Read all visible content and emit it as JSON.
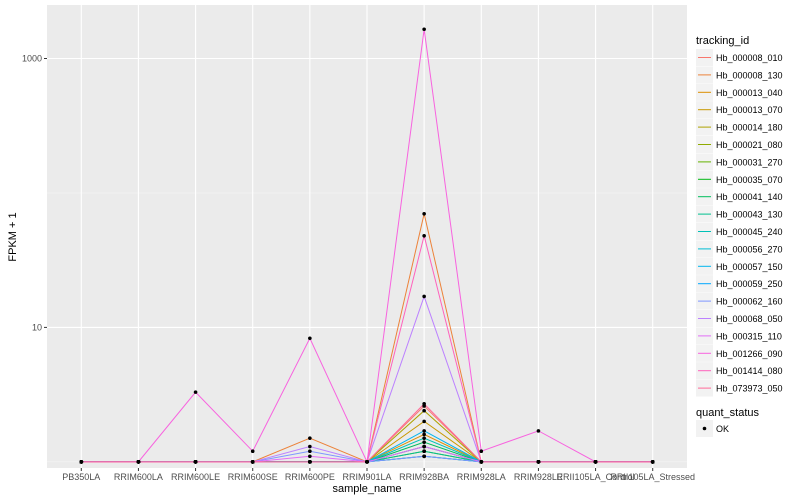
{
  "chart_data": {
    "type": "line",
    "xlabel": "sample_name",
    "ylabel": "FPKM + 1",
    "yscale": "log10",
    "ylim": [
      0.9,
      2500
    ],
    "y_ticks": [
      {
        "value": 1000,
        "label": "1000"
      },
      {
        "value": 10,
        "label": "10"
      }
    ],
    "categories": [
      "PB350LA",
      "RRIM600LA",
      "RRIM600LE",
      "RRIM600SE",
      "RRIM600PE",
      "RRIM901LA",
      "RRIM928BA",
      "RRIM928LA",
      "RRIM928LE",
      "RRII105LA_Control",
      "RRII105LA_Stressed"
    ],
    "legend": {
      "title": "tracking_id",
      "status_title": "quant_status",
      "status_label": "OK"
    },
    "series": [
      {
        "name": "Hb_000008_010",
        "color": "#F8766D",
        "values": [
          1,
          1,
          1,
          1,
          1,
          1,
          2.6,
          1,
          1,
          1,
          1
        ]
      },
      {
        "name": "Hb_000008_130",
        "color": "#EC8239",
        "values": [
          1,
          1,
          1,
          1,
          1.5,
          1,
          70,
          1,
          1,
          1,
          1
        ]
      },
      {
        "name": "Hb_000013_040",
        "color": "#DB8E00",
        "values": [
          1,
          1,
          1,
          1,
          1,
          1,
          1.6,
          1,
          1,
          1,
          1
        ]
      },
      {
        "name": "Hb_000013_070",
        "color": "#C79800",
        "values": [
          1,
          1,
          1,
          1,
          1,
          1,
          2.0,
          1,
          1,
          1,
          1
        ]
      },
      {
        "name": "Hb_000014_180",
        "color": "#AEA200",
        "values": [
          1,
          1,
          1,
          1,
          1,
          1,
          2.4,
          1,
          1,
          1,
          1
        ]
      },
      {
        "name": "Hb_000021_080",
        "color": "#8FAA00",
        "values": [
          1,
          1,
          1,
          1,
          1,
          1,
          1.3,
          1,
          1,
          1,
          1
        ]
      },
      {
        "name": "Hb_000031_270",
        "color": "#64B200",
        "values": [
          1,
          1,
          1,
          1,
          1,
          1,
          1.2,
          1,
          1,
          1,
          1
        ]
      },
      {
        "name": "Hb_000035_070",
        "color": "#00B813",
        "values": [
          1,
          1,
          1,
          1,
          1,
          1,
          1.1,
          1,
          1,
          1,
          1
        ]
      },
      {
        "name": "Hb_000041_140",
        "color": "#00BD5C",
        "values": [
          1,
          1,
          1,
          1,
          1,
          1,
          1.4,
          1,
          1,
          1,
          1
        ]
      },
      {
        "name": "Hb_000043_130",
        "color": "#00C08E",
        "values": [
          1,
          1,
          1,
          1,
          1,
          1,
          1.2,
          1,
          1,
          1,
          1
        ]
      },
      {
        "name": "Hb_000045_240",
        "color": "#00C1B7",
        "values": [
          1,
          1,
          1,
          1,
          1,
          1,
          1.5,
          1,
          1,
          1,
          1
        ]
      },
      {
        "name": "Hb_000056_270",
        "color": "#00BDD4",
        "values": [
          1,
          1,
          1,
          1,
          1,
          1,
          1.3,
          1,
          1,
          1,
          1
        ]
      },
      {
        "name": "Hb_000057_150",
        "color": "#00B5EE",
        "values": [
          1,
          1,
          1,
          1,
          1,
          1,
          1.7,
          1,
          1,
          1,
          1
        ]
      },
      {
        "name": "Hb_000059_250",
        "color": "#00A7FF",
        "values": [
          1,
          1,
          1,
          1,
          1,
          1,
          1.1,
          1,
          1,
          1,
          1
        ]
      },
      {
        "name": "Hb_000062_160",
        "color": "#7F96FF",
        "values": [
          1,
          1,
          1,
          1,
          1.2,
          1,
          1.1,
          1,
          1,
          1,
          1
        ]
      },
      {
        "name": "Hb_000068_050",
        "color": "#BC81FF",
        "values": [
          1,
          1,
          1,
          1,
          1.3,
          1,
          17,
          1,
          1,
          1,
          1
        ]
      },
      {
        "name": "Hb_000315_110",
        "color": "#E26EF7",
        "values": [
          1,
          1,
          1,
          1,
          1.1,
          1,
          1.3,
          1,
          1,
          1,
          1
        ]
      },
      {
        "name": "Hb_001266_090",
        "color": "#F863DF",
        "values": [
          1,
          1,
          3.3,
          1.2,
          8.3,
          1,
          1650,
          1.2,
          1.7,
          1,
          1
        ]
      },
      {
        "name": "Hb_001414_080",
        "color": "#FF62BC",
        "values": [
          1,
          1,
          1,
          1,
          1,
          1,
          48,
          1,
          1,
          1,
          1
        ]
      },
      {
        "name": "Hb_073973_050",
        "color": "#FF6A98",
        "values": [
          1,
          1,
          1,
          1,
          1,
          1,
          2.7,
          1,
          1,
          1,
          1
        ]
      }
    ]
  }
}
